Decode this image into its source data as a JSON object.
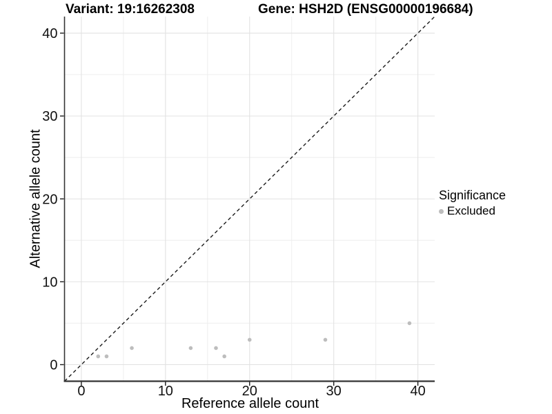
{
  "header": {
    "title_left": "Variant: 19:16262308",
    "title_right": "Gene: HSH2D (ENSG00000196684)"
  },
  "axes": {
    "x_label": "Reference allele count",
    "y_label": "Alternative allele count"
  },
  "legend": {
    "title": "Significance",
    "items": [
      {
        "label": "Excluded",
        "color": "#bdbdbd"
      }
    ]
  },
  "colors": {
    "point": "#bdbdbd",
    "axis_line": "#333333",
    "major_grid": "#e2e2e2",
    "minor_grid": "#eeeeee",
    "identity_line": "#1a1a1a",
    "tick_text": "#111111"
  },
  "chart_data": {
    "type": "scatter",
    "title": "Variant: 19:16262308   Gene: HSH2D (ENSG00000196684)",
    "xlabel": "Reference allele count",
    "ylabel": "Alternative allele count",
    "xlim": [
      -2,
      42
    ],
    "ylim": [
      -2,
      42
    ],
    "x_ticks": [
      0,
      10,
      20,
      30,
      40
    ],
    "y_ticks": [
      0,
      10,
      20,
      30,
      40
    ],
    "minor_grid_step": 5,
    "grid": true,
    "legend_position": "right",
    "identity_line": {
      "show": true,
      "style": "dashed",
      "slope": 1,
      "intercept": 0
    },
    "series": [
      {
        "name": "Excluded",
        "color": "#bdbdbd",
        "points": [
          [
            2,
            1
          ],
          [
            3,
            1
          ],
          [
            6,
            2
          ],
          [
            13,
            2
          ],
          [
            16,
            2
          ],
          [
            17,
            1
          ],
          [
            20,
            3
          ],
          [
            29,
            3
          ],
          [
            39,
            5
          ]
        ]
      }
    ]
  }
}
